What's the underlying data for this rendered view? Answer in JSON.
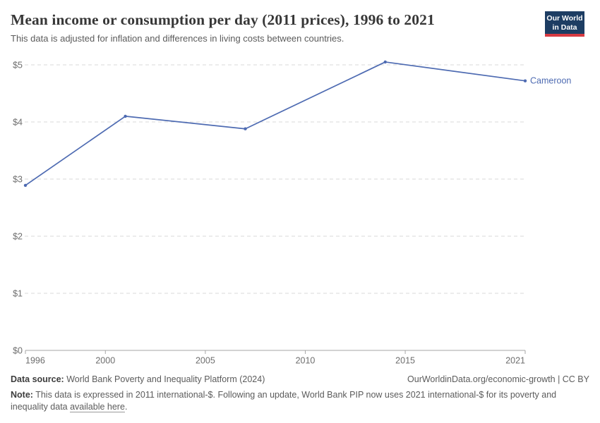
{
  "page": {
    "title": "Mean income or consumption per day (2011 prices), 1996 to 2021",
    "subtitle": "This data is adjusted for inflation and differences in living costs between countries."
  },
  "logo": {
    "line1": "Our World",
    "line2": "in Data",
    "bg_color": "#1d3d63",
    "accent_color": "#d73a42"
  },
  "chart_data": {
    "type": "line",
    "title": "Mean income or consumption per day (2011 prices), 1996 to 2021",
    "series": [
      {
        "name": "Cameroon",
        "color": "#4e6bb2",
        "x": [
          1996,
          2001,
          2007,
          2014,
          2021
        ],
        "values": [
          2.89,
          4.1,
          3.88,
          5.05,
          4.72
        ]
      }
    ],
    "xlim": [
      1996,
      2021
    ],
    "ylim": [
      0,
      5
    ],
    "x_ticks": [
      1996,
      2000,
      2005,
      2010,
      2015,
      2021
    ],
    "y_ticks": [
      0,
      1,
      2,
      3,
      4,
      5
    ],
    "y_tick_labels": [
      "$0",
      "$1",
      "$2",
      "$3",
      "$4",
      "$5"
    ],
    "grid": "horizontal-dashed",
    "legend_position": "end-of-line-label",
    "entity_label": "Cameroon",
    "colors": {
      "gridline": "#d9d9d9",
      "axis": "#a6a6a6",
      "tick_label": "#6e6e6e"
    }
  },
  "footer": {
    "datasource_label": "Data source:",
    "datasource_text": " World Bank Poverty and Inequality Platform (2024)",
    "link_text": "OurWorldinData.org/economic-growth | CC BY",
    "note_label": "Note:",
    "note_text": " This data is expressed in 2011 international-$. Following an update, World Bank PIP now uses 2021 international-$ for its poverty and inequality data ",
    "note_link": "available here",
    "note_suffix": "."
  }
}
